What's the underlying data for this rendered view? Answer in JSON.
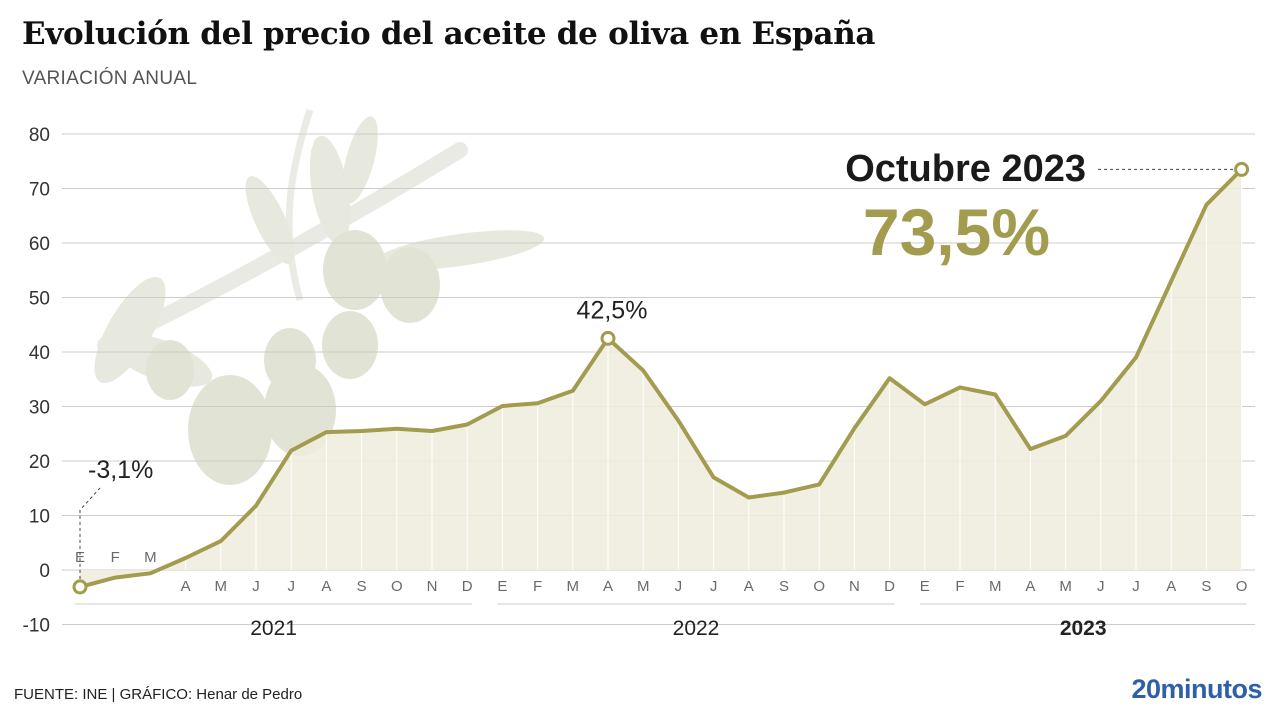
{
  "title": "Evolución del precio del aceite de oliva en España",
  "subtitle": "VARIACIÓN ANUAL",
  "footer": {
    "source_label": "FUENTE:",
    "source": "INE",
    "separator": "|",
    "credit_label": "GRÁFICO:",
    "credit": "Henar de Pedro"
  },
  "brand": "20minutos",
  "colors": {
    "line": "#a39c4f",
    "area": "#efecdc",
    "grid": "#cccccc",
    "highlight": "#a39c4f",
    "brand": "#2f5fa8",
    "illustration": "olive-branch-decoration"
  },
  "chart_data": {
    "type": "area",
    "ylim": [
      -10,
      80
    ],
    "yticks": [
      -10,
      0,
      10,
      20,
      30,
      40,
      50,
      60,
      70,
      80
    ],
    "grid": true,
    "month_labels": [
      "E",
      "F",
      "M",
      "A",
      "M",
      "J",
      "J",
      "A",
      "S",
      "O",
      "N",
      "D",
      "E",
      "F",
      "M",
      "A",
      "M",
      "J",
      "J",
      "A",
      "S",
      "O",
      "N",
      "D",
      "E",
      "F",
      "M",
      "A",
      "M",
      "J",
      "J",
      "A",
      "S",
      "O"
    ],
    "years": [
      {
        "label": "2021",
        "bold": false
      },
      {
        "label": "2022",
        "bold": false
      },
      {
        "label": "2023",
        "bold": true
      }
    ],
    "series": [
      {
        "values": [
          -3.1,
          -1.4,
          -0.6,
          2.2,
          5.3,
          11.8,
          21.9,
          25.3,
          25.5,
          25.9,
          25.5,
          26.7,
          30.1,
          30.6,
          32.9,
          42.5,
          36.6,
          27.4,
          17.0,
          13.3,
          14.2,
          15.7,
          26.0,
          35.2,
          30.4,
          33.5,
          32.2,
          22.2,
          24.6,
          31.0,
          39.0,
          53.0,
          67.0,
          73.5
        ]
      }
    ],
    "annotations": [
      {
        "index": 0,
        "text": "-3,1%"
      },
      {
        "index": 15,
        "text": "42,5%"
      },
      {
        "index": 33,
        "label": "Octubre 2023",
        "text": "73,5%"
      }
    ]
  }
}
